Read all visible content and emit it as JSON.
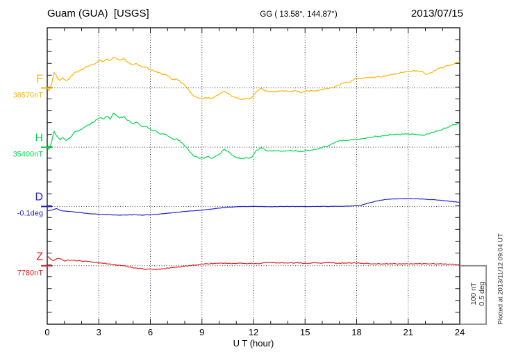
{
  "header": {
    "title": "Guam (GUA)  [USGS]",
    "coords": "GG ( 13.58°, 144.87°)",
    "date": "2013/07/15"
  },
  "footer": {
    "xlabel": "U T (hour)"
  },
  "side_notes": {
    "scale_bar_label": "100 nT\n0.5 deg",
    "plotted_note": "Plotted at 2013/11/12 09:04 UT"
  },
  "chart_data": {
    "type": "line",
    "title": "Guam (GUA) [USGS] magnetogram 2013/07/15",
    "xlabel": "U T (hour)",
    "x_range": [
      0,
      24
    ],
    "x_major_ticks": [
      0,
      3,
      6,
      9,
      12,
      15,
      18,
      21,
      24
    ],
    "x_minor_step_hours": 1,
    "grid": "dotted vertical lines every 3 hours; dotted horizontal line at each channel baseline",
    "legend_position": "left margin, one colored label per channel",
    "scale_bar": {
      "nT_per_division": 100,
      "deg_per_division": 0.5
    },
    "series": [
      {
        "name": "F",
        "baseline_label": "36570nT",
        "baseline_value": 36570,
        "unit": "nT",
        "color": "#FFB300",
        "points": [
          [
            0,
            0
          ],
          [
            0.1,
            -5
          ],
          [
            0.25,
            6
          ],
          [
            0.4,
            26
          ],
          [
            0.55,
            19
          ],
          [
            0.7,
            13
          ],
          [
            0.9,
            17
          ],
          [
            1.1,
            12
          ],
          [
            1.3,
            16
          ],
          [
            1.6,
            26
          ],
          [
            1.9,
            29
          ],
          [
            2.3,
            36
          ],
          [
            2.7,
            40
          ],
          [
            3.0,
            46
          ],
          [
            3.3,
            45
          ],
          [
            3.5,
            49
          ],
          [
            3.65,
            46
          ],
          [
            3.85,
            52
          ],
          [
            4.05,
            50
          ],
          [
            4.2,
            47
          ],
          [
            4.45,
            50
          ],
          [
            4.7,
            43
          ],
          [
            4.95,
            39
          ],
          [
            5.2,
            41
          ],
          [
            5.5,
            35
          ],
          [
            5.75,
            35
          ],
          [
            6.05,
            30
          ],
          [
            6.35,
            28
          ],
          [
            6.65,
            23
          ],
          [
            6.9,
            23
          ],
          [
            7.15,
            17
          ],
          [
            7.35,
            14
          ],
          [
            7.55,
            15
          ],
          [
            7.85,
            8
          ],
          [
            8.1,
            1
          ],
          [
            8.3,
            -7
          ],
          [
            8.5,
            -13
          ],
          [
            8.8,
            -17
          ],
          [
            9.1,
            -18
          ],
          [
            9.4,
            -16
          ],
          [
            9.6,
            -18
          ],
          [
            9.9,
            -13
          ],
          [
            10.1,
            -9
          ],
          [
            10.3,
            -6
          ],
          [
            10.5,
            -9
          ],
          [
            10.8,
            -15
          ],
          [
            11.0,
            -17
          ],
          [
            11.3,
            -19
          ],
          [
            11.5,
            -18
          ],
          [
            11.75,
            -19
          ],
          [
            11.9,
            -17
          ],
          [
            12.1,
            -9
          ],
          [
            12.4,
            -1
          ],
          [
            12.7,
            -5
          ],
          [
            13.0,
            -6
          ],
          [
            13.5,
            -5
          ],
          [
            14.0,
            -6
          ],
          [
            14.5,
            -5
          ],
          [
            14.8,
            -8
          ],
          [
            15.1,
            -5
          ],
          [
            15.5,
            -5
          ],
          [
            15.9,
            -3
          ],
          [
            16.3,
            -1
          ],
          [
            16.6,
            1
          ],
          [
            16.9,
            4
          ],
          [
            17.1,
            7
          ],
          [
            17.5,
            9
          ],
          [
            17.8,
            13
          ],
          [
            18.0,
            16
          ],
          [
            18.3,
            16
          ],
          [
            18.7,
            17
          ],
          [
            19.1,
            18
          ],
          [
            19.5,
            19
          ],
          [
            19.9,
            22
          ],
          [
            20.3,
            24
          ],
          [
            20.7,
            26
          ],
          [
            21.2,
            28
          ],
          [
            21.5,
            29
          ],
          [
            21.8,
            28
          ],
          [
            22.0,
            23
          ],
          [
            22.2,
            24
          ],
          [
            22.5,
            29
          ],
          [
            22.8,
            33
          ],
          [
            23.1,
            36
          ],
          [
            23.4,
            38
          ],
          [
            23.7,
            41
          ],
          [
            24.0,
            45
          ]
        ]
      },
      {
        "name": "H",
        "baseline_label": "35400nT",
        "baseline_value": 35400,
        "unit": "nT",
        "color": "#00D94C",
        "points": [
          [
            0,
            0
          ],
          [
            0.1,
            -4
          ],
          [
            0.25,
            8
          ],
          [
            0.4,
            27
          ],
          [
            0.55,
            19
          ],
          [
            0.75,
            12
          ],
          [
            0.9,
            16
          ],
          [
            1.1,
            11
          ],
          [
            1.3,
            15
          ],
          [
            1.6,
            26
          ],
          [
            1.9,
            29
          ],
          [
            2.3,
            36
          ],
          [
            2.7,
            42
          ],
          [
            3.0,
            49
          ],
          [
            3.3,
            48
          ],
          [
            3.5,
            52
          ],
          [
            3.65,
            47
          ],
          [
            3.85,
            57
          ],
          [
            4.05,
            53
          ],
          [
            4.2,
            49
          ],
          [
            4.45,
            52
          ],
          [
            4.7,
            45
          ],
          [
            4.95,
            40
          ],
          [
            5.2,
            42
          ],
          [
            5.5,
            35
          ],
          [
            5.75,
            35
          ],
          [
            6.05,
            29
          ],
          [
            6.35,
            27
          ],
          [
            6.65,
            22
          ],
          [
            6.9,
            22
          ],
          [
            7.15,
            16
          ],
          [
            7.35,
            13
          ],
          [
            7.55,
            14
          ],
          [
            7.85,
            7
          ],
          [
            8.1,
            0
          ],
          [
            8.3,
            -8
          ],
          [
            8.5,
            -14
          ],
          [
            8.8,
            -18
          ],
          [
            9.1,
            -19
          ],
          [
            9.4,
            -16
          ],
          [
            9.6,
            -19
          ],
          [
            9.9,
            -14
          ],
          [
            10.1,
            -10
          ],
          [
            10.3,
            -3
          ],
          [
            10.5,
            -7
          ],
          [
            10.8,
            -14
          ],
          [
            11.0,
            -17
          ],
          [
            11.3,
            -19
          ],
          [
            11.5,
            -18
          ],
          [
            11.75,
            -19
          ],
          [
            11.9,
            -17
          ],
          [
            12.1,
            -8
          ],
          [
            12.4,
            -1
          ],
          [
            12.7,
            -5
          ],
          [
            13.0,
            -6
          ],
          [
            13.5,
            -6
          ],
          [
            14.0,
            -6
          ],
          [
            14.5,
            -6
          ],
          [
            14.8,
            -8
          ],
          [
            15.1,
            -5
          ],
          [
            15.5,
            -4
          ],
          [
            15.9,
            -1
          ],
          [
            16.2,
            1
          ],
          [
            16.5,
            5
          ],
          [
            16.8,
            9
          ],
          [
            17.0,
            11
          ],
          [
            17.3,
            11
          ],
          [
            17.6,
            12
          ],
          [
            18.0,
            13
          ],
          [
            18.4,
            15
          ],
          [
            18.8,
            16
          ],
          [
            19.2,
            18
          ],
          [
            19.6,
            19
          ],
          [
            20.0,
            21
          ],
          [
            20.4,
            22
          ],
          [
            20.9,
            22
          ],
          [
            21.3,
            22
          ],
          [
            21.7,
            20
          ],
          [
            22.0,
            21
          ],
          [
            22.2,
            22
          ],
          [
            22.6,
            27
          ],
          [
            23.0,
            30
          ],
          [
            23.4,
            35
          ],
          [
            23.7,
            38
          ],
          [
            24.0,
            41
          ]
        ]
      },
      {
        "name": "D",
        "baseline_label": "-0.1deg",
        "baseline_value": -0.1,
        "unit": "deg",
        "color": "#2323CC",
        "points": [
          [
            0,
            -0.035
          ],
          [
            0.3,
            -0.029
          ],
          [
            0.55,
            -0.018
          ],
          [
            0.8,
            -0.035
          ],
          [
            1.2,
            -0.041
          ],
          [
            1.8,
            -0.05
          ],
          [
            2.5,
            -0.061
          ],
          [
            3.2,
            -0.067
          ],
          [
            3.7,
            -0.07
          ],
          [
            4.3,
            -0.073
          ],
          [
            5.0,
            -0.07
          ],
          [
            5.6,
            -0.073
          ],
          [
            6.2,
            -0.067
          ],
          [
            6.9,
            -0.059
          ],
          [
            7.5,
            -0.05
          ],
          [
            8.1,
            -0.041
          ],
          [
            8.7,
            -0.035
          ],
          [
            9.3,
            -0.026
          ],
          [
            9.9,
            -0.015
          ],
          [
            10.5,
            -0.006
          ],
          [
            11.1,
            -0.002
          ],
          [
            12.0,
            0
          ],
          [
            13.0,
            -0.002
          ],
          [
            14.0,
            0
          ],
          [
            15.0,
            -0.001
          ],
          [
            16.0,
            0
          ],
          [
            16.8,
            0.001
          ],
          [
            17.6,
            0.003
          ],
          [
            18.2,
            0.009
          ],
          [
            18.7,
            0.029
          ],
          [
            19.2,
            0.047
          ],
          [
            19.7,
            0.059
          ],
          [
            20.2,
            0.064
          ],
          [
            20.8,
            0.067
          ],
          [
            21.4,
            0.066
          ],
          [
            22.0,
            0.061
          ],
          [
            22.6,
            0.056
          ],
          [
            23.2,
            0.047
          ],
          [
            23.6,
            0.041
          ],
          [
            24.0,
            0.035
          ]
        ]
      },
      {
        "name": "Z",
        "baseline_label": "7780nT",
        "baseline_value": 7780,
        "unit": "nT",
        "color": "#E02020",
        "points": [
          [
            0,
            17
          ],
          [
            0.15,
            12.5
          ],
          [
            0.35,
            8.5
          ],
          [
            0.55,
            12
          ],
          [
            0.8,
            11.5
          ],
          [
            1.0,
            8
          ],
          [
            1.2,
            10
          ],
          [
            1.5,
            9
          ],
          [
            1.9,
            8.5
          ],
          [
            2.3,
            7.5
          ],
          [
            2.8,
            5.5
          ],
          [
            3.3,
            4
          ],
          [
            3.8,
            2
          ],
          [
            4.3,
            0.5
          ],
          [
            4.8,
            -2
          ],
          [
            5.3,
            -4.5
          ],
          [
            5.8,
            -6
          ],
          [
            6.3,
            -6.5
          ],
          [
            6.8,
            -5
          ],
          [
            7.3,
            -3
          ],
          [
            7.8,
            -1.5
          ],
          [
            8.3,
            0.5
          ],
          [
            8.8,
            2
          ],
          [
            9.3,
            3.5
          ],
          [
            9.8,
            4
          ],
          [
            10.3,
            4.5
          ],
          [
            10.8,
            4
          ],
          [
            11.3,
            4.5
          ],
          [
            11.8,
            4
          ],
          [
            12.2,
            3.5
          ],
          [
            12.6,
            5
          ],
          [
            13.0,
            5.5
          ],
          [
            13.6,
            5
          ],
          [
            14.0,
            4.5
          ],
          [
            14.5,
            5
          ],
          [
            15.0,
            4.5
          ],
          [
            15.5,
            5
          ],
          [
            16.0,
            4.5
          ],
          [
            16.5,
            5
          ],
          [
            17.0,
            4.5
          ],
          [
            17.5,
            5
          ],
          [
            18.0,
            4.5
          ],
          [
            18.5,
            4
          ],
          [
            19.0,
            3.5
          ],
          [
            19.5,
            3
          ],
          [
            20.0,
            3.5
          ],
          [
            21.0,
            3
          ],
          [
            22.0,
            3.5
          ],
          [
            23.0,
            3
          ],
          [
            23.5,
            2.5
          ],
          [
            24.0,
            2
          ]
        ]
      }
    ]
  }
}
